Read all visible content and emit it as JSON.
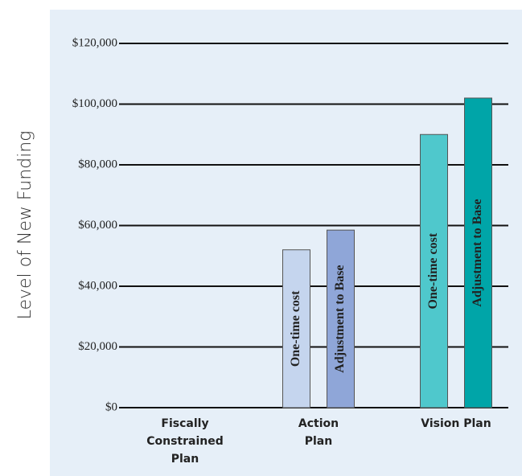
{
  "chart_data": {
    "type": "bar",
    "y_label": "Level of New Funding",
    "categories": [
      "Fiscally Constrained Plan",
      "Action Plan",
      "Vision Plan"
    ],
    "series": [
      {
        "name": "One-time cost",
        "colors": [
          "#c5d5ee",
          "#c5d5ee",
          "#4fc8cc"
        ],
        "values": [
          0,
          52000,
          90000
        ]
      },
      {
        "name": "Adjustment to Base",
        "colors": [
          "#8fa6d8",
          "#8fa6d8",
          "#00a5a8"
        ],
        "values": [
          0,
          58500,
          102000
        ]
      }
    ],
    "ylim": [
      0,
      120000
    ],
    "yticks": [
      {
        "value": 0,
        "label": "$0"
      },
      {
        "value": 20000,
        "label": "$20,000"
      },
      {
        "value": 40000,
        "label": "$40,000"
      },
      {
        "value": 60000,
        "label": "$60,000"
      },
      {
        "value": 80000,
        "label": "$80,000"
      },
      {
        "value": 100000,
        "label": "$100,000"
      },
      {
        "value": 120000,
        "label": "$120,000"
      }
    ],
    "grid": true
  }
}
